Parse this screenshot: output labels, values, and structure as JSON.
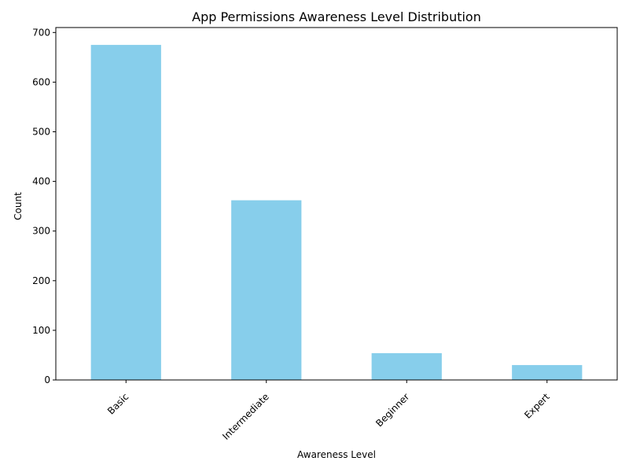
{
  "chart_data": {
    "type": "bar",
    "title": "App Permissions Awareness Level Distribution",
    "xlabel": "Awareness Level",
    "ylabel": "Count",
    "categories": [
      "Basic",
      "Intermediate",
      "Beginner",
      "Expert"
    ],
    "values": [
      675,
      362,
      54,
      30
    ],
    "ylim": [
      0,
      710
    ],
    "yticks": [
      0,
      100,
      200,
      300,
      400,
      500,
      600,
      700
    ],
    "bar_color": "#87ceeb",
    "axis_color": "#000000",
    "grid": false,
    "legend": "none",
    "xtick_rotation_deg": 45
  }
}
